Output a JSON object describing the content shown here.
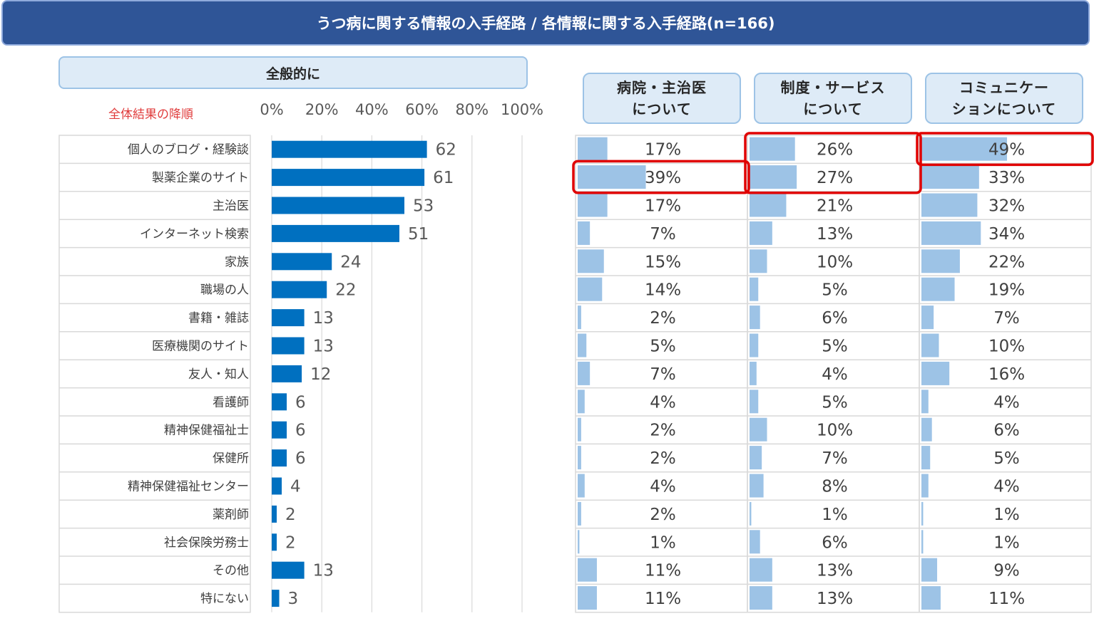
{
  "title": "うつ病に関する情報の入手経路 / 各情報に関する入手経路(n=166)",
  "section_header": "全般的に",
  "sort_note": "全体結果の降順",
  "col_headers": [
    {
      "line1": "病院・主治医",
      "line2": "について"
    },
    {
      "line1": "制度・サービス",
      "line2": "について"
    },
    {
      "line1": "コミュニケー",
      "line2": "ションについて"
    }
  ],
  "chart_data": {
    "type": "bar",
    "categories": [
      "個人のブログ・経験談",
      "製薬企業のサイト",
      "主治医",
      "インターネット検索",
      "家族",
      "職場の人",
      "書籍・雑誌",
      "医療機関のサイト",
      "友人・知人",
      "看護師",
      "精神保健福祉士",
      "保健所",
      "精神保健福祉センター",
      "薬剤師",
      "社会保険労務士",
      "その他",
      "特にない"
    ],
    "values": [
      62,
      61,
      53,
      51,
      24,
      22,
      13,
      13,
      12,
      6,
      6,
      6,
      4,
      2,
      2,
      13,
      3
    ],
    "xlim": [
      0,
      100
    ],
    "x_ticks": [
      "0%",
      "20%",
      "40%",
      "60%",
      "80%",
      "100%"
    ],
    "grid": true,
    "bar_color": "#0070c0",
    "table": {
      "columns": [
        "病院・主治医について",
        "制度・サービスについて",
        "コミュニケーションについて"
      ],
      "values": [
        [
          17,
          26,
          49
        ],
        [
          39,
          27,
          33
        ],
        [
          17,
          21,
          32
        ],
        [
          7,
          13,
          34
        ],
        [
          15,
          10,
          22
        ],
        [
          14,
          5,
          19
        ],
        [
          2,
          6,
          7
        ],
        [
          5,
          5,
          10
        ],
        [
          7,
          4,
          16
        ],
        [
          4,
          5,
          4
        ],
        [
          2,
          10,
          6
        ],
        [
          2,
          7,
          5
        ],
        [
          4,
          8,
          4
        ],
        [
          2,
          1,
          1
        ],
        [
          1,
          6,
          1
        ],
        [
          11,
          13,
          9
        ],
        [
          11,
          13,
          11
        ]
      ],
      "bar_color": "#9dc3e6"
    },
    "highlights": [
      {
        "row": 0,
        "col": 2
      },
      {
        "row": 1,
        "col": 0
      },
      {
        "rows": [
          0,
          1
        ],
        "col": 1
      }
    ]
  }
}
